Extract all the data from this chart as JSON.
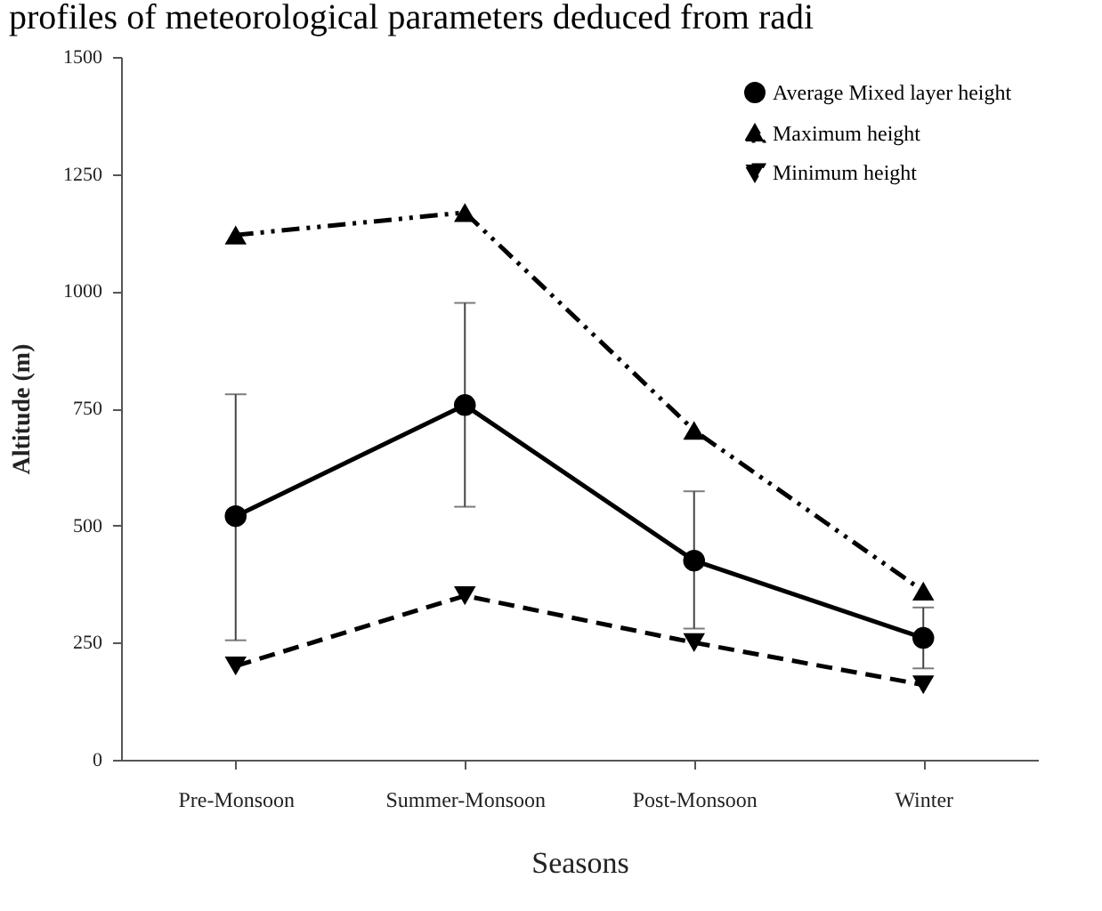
{
  "chart_data": {
    "type": "line",
    "title": "profiles of meteorological parameters deduced from radi",
    "xlabel": "Seasons",
    "ylabel": "Altitude (m)",
    "categories": [
      "Pre-Monsoon",
      "Summer-Monsoon",
      "Post-Monsoon",
      "Winter"
    ],
    "series": [
      {
        "name": "Average Mixed layer height",
        "color": "#000000",
        "values": [
          520,
          757,
          425,
          260
        ],
        "marker": "circle",
        "line_style": "solid",
        "errors": [
          [
            255,
            780
          ],
          [
            540,
            975
          ],
          [
            280,
            573
          ],
          [
            195,
            325
          ]
        ]
      },
      {
        "name": "Maximum height",
        "color": "#000000",
        "values": [
          1120,
          1168,
          703,
          360
        ],
        "marker": "triangle",
        "line_style": "dashdotdot"
      },
      {
        "name": "Minimum height",
        "color": "#000000",
        "values": [
          200,
          350,
          250,
          160
        ],
        "marker": "triangle-down",
        "line_style": "dashed"
      }
    ],
    "ylim": [
      0,
      1500
    ],
    "yticks": [
      0,
      250,
      500,
      750,
      1000,
      1250,
      1500
    ],
    "grid": false,
    "legend": "top right"
  }
}
